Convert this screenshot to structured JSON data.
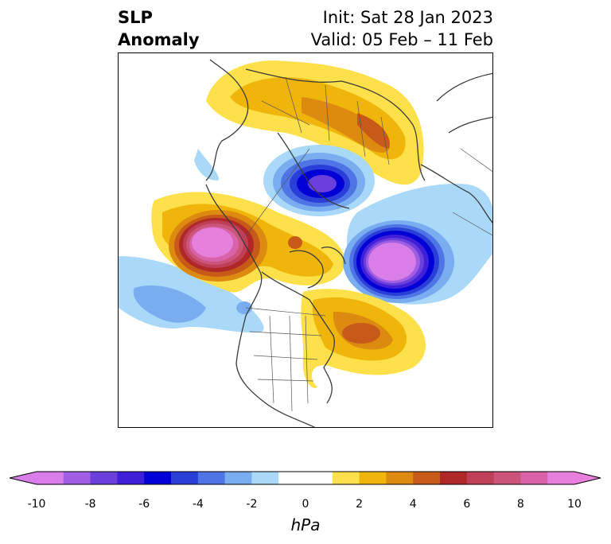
{
  "title": {
    "left_line1": "SLP",
    "left_line2": "Anomaly",
    "right_line1": "Init: Sat 28 Jan 2023",
    "right_line2": "Valid: 05 Feb – 11 Feb"
  },
  "colorbar": {
    "units": "hPa",
    "ticks": [
      "-10",
      "-8",
      "-6",
      "-4",
      "-2",
      "0",
      "2",
      "4",
      "6",
      "8",
      "10"
    ],
    "bins": [
      "#d97ee8",
      "#9f5ee3",
      "#6a3fdc",
      "#3f1fd8",
      "#0000d6",
      "#2a3ed8",
      "#4f74e6",
      "#79adf0",
      "#a9d8f8",
      "#ffffff",
      "#ffffff",
      "#fde04a",
      "#f0b50a",
      "#dc8a10",
      "#c75a18",
      "#b02728",
      "#bf3f58",
      "#cc5479",
      "#d863a8",
      "#e77fdc"
    ],
    "extend_low_color": "#d97ee8",
    "extend_high_color": "#e87fdc"
  },
  "map": {
    "features": [
      {
        "name": "negative-anomaly-arctic",
        "value": "-6"
      },
      {
        "name": "positive-anomaly-gulf-of-alaska",
        "value": "10"
      },
      {
        "name": "negative-anomaly-north-atlantic",
        "value": "-10"
      },
      {
        "name": "positive-anomaly-eastern-canada",
        "value": "5"
      },
      {
        "name": "positive-anomaly-siberia",
        "value": "4"
      }
    ]
  }
}
